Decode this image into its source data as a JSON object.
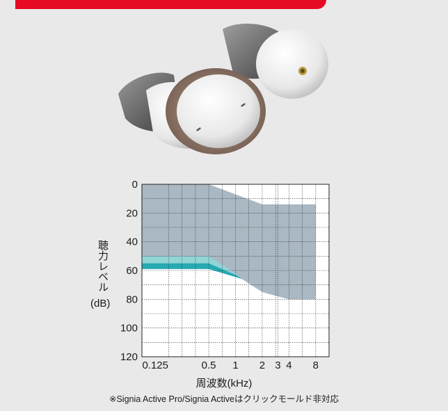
{
  "colors": {
    "banner": "#e60a23",
    "background": "#e9e9ea",
    "range_fill": "#a9b8c3",
    "band_light": "#8fd6d8",
    "band_dark": "#1aa4ae",
    "grid": "#333333"
  },
  "chart_data": {
    "type": "area",
    "xlabel": "周波数(kHz)",
    "ylabel": "聴力レベル",
    "ylabel_unit": "(dB)",
    "x_scale": "log2",
    "x_ticks": [
      "0.125",
      "0.5",
      "1",
      "2",
      "3",
      "4",
      "8"
    ],
    "x_tick_values": [
      0.125,
      0.5,
      1,
      2,
      3,
      4,
      8
    ],
    "ylim": [
      0,
      120
    ],
    "y_inverted": true,
    "y_ticks": [
      0,
      20,
      40,
      60,
      80,
      100,
      120
    ],
    "grid": true,
    "series": [
      {
        "role": "fitting-range",
        "upper": {
          "x": [
            0.0884,
            0.5,
            2,
            8
          ],
          "y": [
            0,
            0,
            14,
            14
          ]
        },
        "lower": {
          "x": [
            0.0884,
            0.5,
            1,
            2,
            3,
            4,
            8
          ],
          "y": [
            55,
            55,
            63,
            75,
            78,
            80,
            80
          ]
        }
      },
      {
        "role": "light-band",
        "upper": {
          "x": [
            0.0884,
            0.5,
            1,
            1.12
          ],
          "y": [
            50,
            50,
            62,
            64
          ]
        },
        "lower": {
          "x": [
            0.0884,
            0.5,
            1.12
          ],
          "y": [
            55,
            55,
            64
          ]
        }
      },
      {
        "role": "dark-band",
        "upper": {
          "x": [
            0.0884,
            0.5,
            1,
            1.2
          ],
          "y": [
            55,
            55,
            63,
            66
          ]
        },
        "lower": {
          "x": [
            0.0884,
            0.5,
            1.2
          ],
          "y": [
            59,
            59,
            66
          ]
        }
      }
    ]
  },
  "footnote": "※Signia Active Pro/Signia Activeはクリックモールド非対応"
}
